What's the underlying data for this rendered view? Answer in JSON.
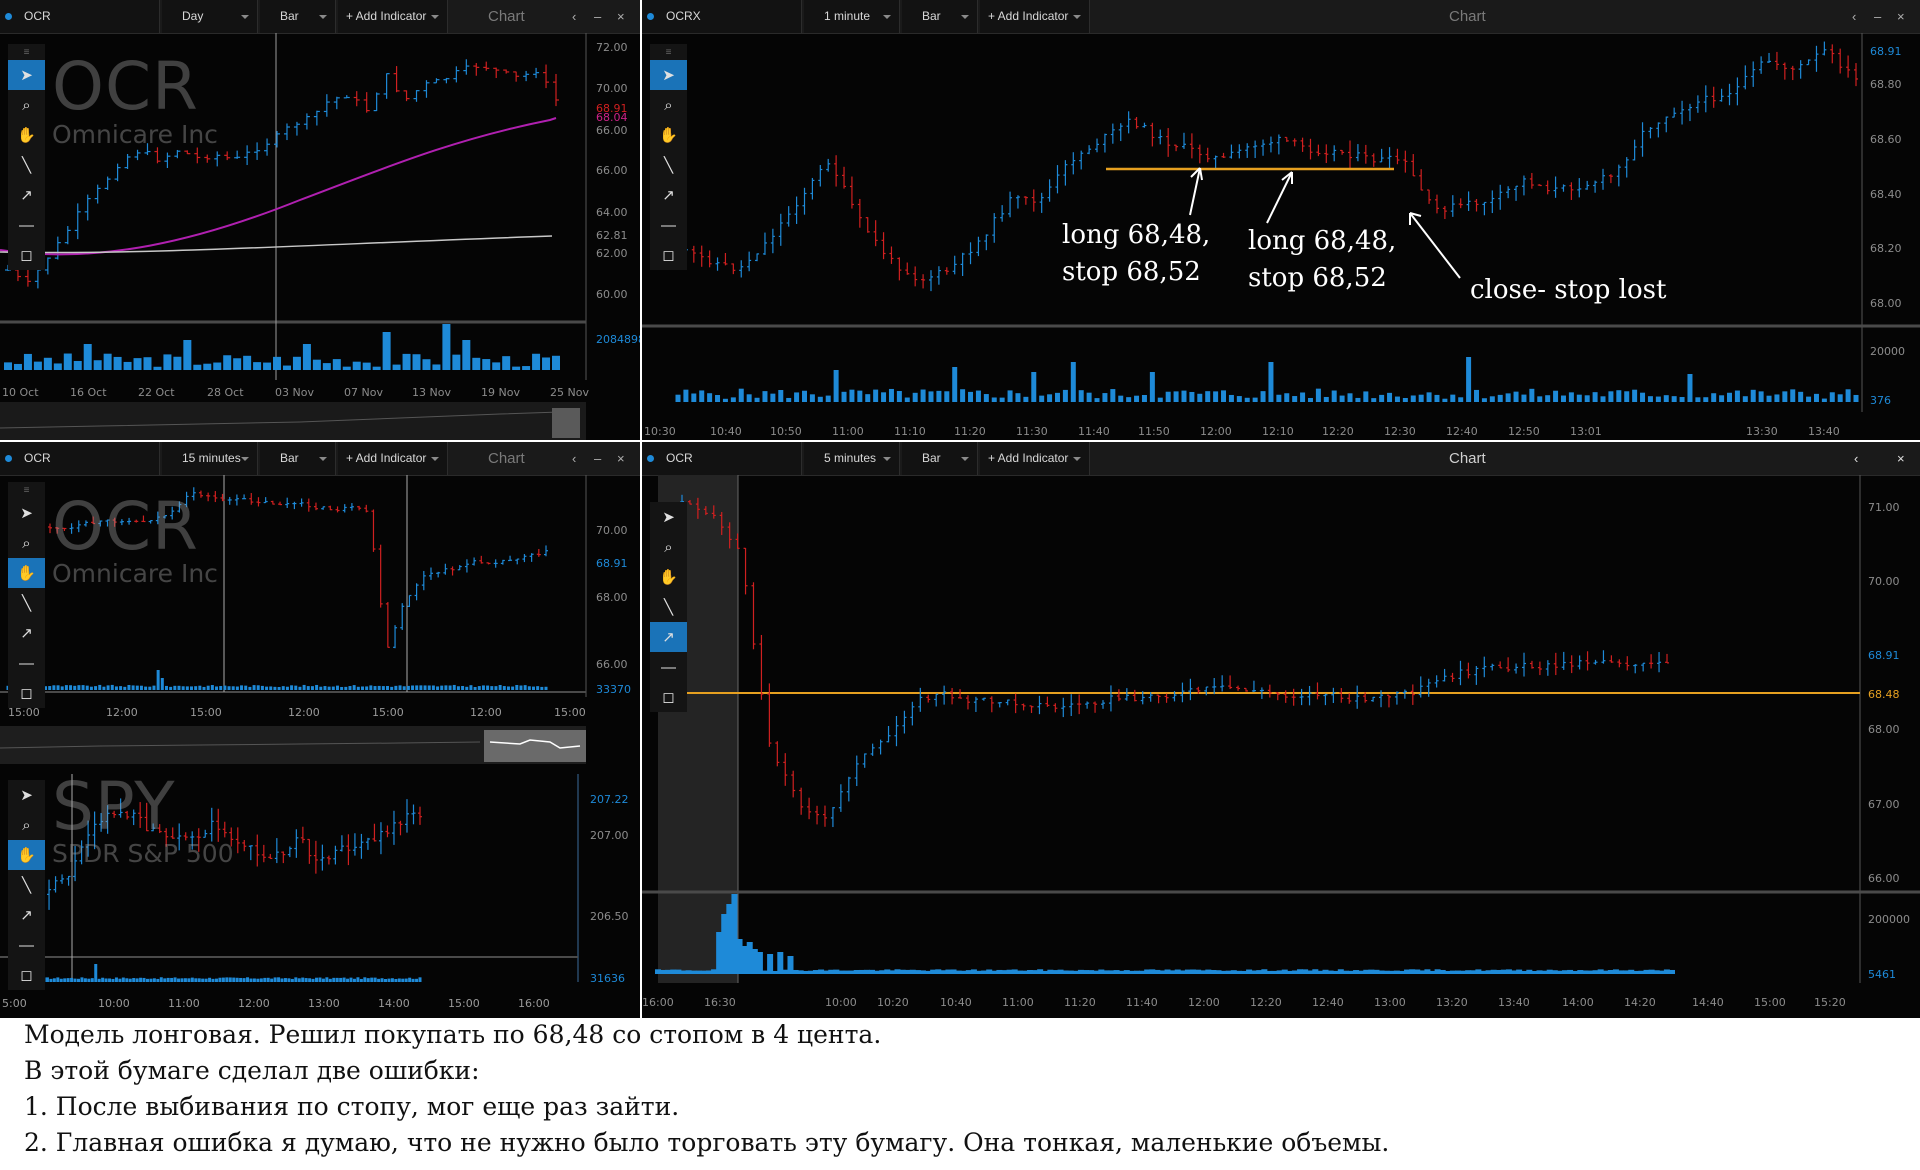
{
  "panels": {
    "daily": {
      "symbol": "OCR",
      "interval": "Day",
      "type": "Bar",
      "add": "+ Add Indicator",
      "title": "Chart",
      "wm_ticker": "OCR",
      "wm_name": "Omnicare  Inc",
      "price_labels": [
        "72.00",
        "70.00",
        "66.00",
        "64.00",
        "62.00",
        "60.00",
        "66.00"
      ],
      "price_colored": [
        "68.91",
        "68.04",
        "62.81"
      ],
      "volume_label": "2084898",
      "dates": [
        "10 Oct",
        "16 Oct",
        "22 Oct",
        "28 Oct",
        "03 Nov",
        "07 Nov",
        "13 Nov",
        "19 Nov",
        "25 Nov"
      ],
      "last_price": "68.91",
      "ma_price": "68.04",
      "ma2_price": "62.81"
    },
    "min1": {
      "symbol": "OCRX",
      "interval": "1 minute",
      "type": "Bar",
      "add": "+ Add Indicator",
      "title": "Chart",
      "price_labels": [
        "68.91",
        "68.80",
        "68.60",
        "68.40",
        "68.20",
        "68.00"
      ],
      "volume_labels": [
        "20000",
        "376"
      ],
      "times": [
        "10:30",
        "10:40",
        "10:50",
        "11:00",
        "11:10",
        "11:20",
        "11:30",
        "11:40",
        "11:50",
        "12:00",
        "12:10",
        "12:20",
        "12:30",
        "12:40",
        "12:50",
        "13:01",
        "13:30",
        "13:40"
      ]
    },
    "min15": {
      "symbol": "OCR",
      "interval": "15 minutes",
      "type": "Bar",
      "add": "+ Add Indicator",
      "title": "Chart",
      "wm_ticker": "OCR",
      "wm_name": "Omnicare  Inc",
      "price_labels": [
        "70.00",
        "68.91",
        "68.00",
        "66.00"
      ],
      "volume_label": "33370",
      "times": [
        "15:00",
        "12:00",
        "15:00",
        "12:00",
        "15:00",
        "12:00",
        "15:00"
      ]
    },
    "spy": {
      "wm_ticker": "SPY",
      "wm_name": "SPDR S&P 500",
      "price_labels": [
        "207.22",
        "207.00",
        "206.50"
      ],
      "volume_label": "31636",
      "times": [
        "5:00",
        "10:00",
        "11:00",
        "12:00",
        "13:00",
        "14:00",
        "15:00",
        "16:00"
      ]
    },
    "min5": {
      "symbol": "OCR",
      "interval": "5 minutes",
      "type": "Bar",
      "add": "+ Add Indicator",
      "title": "Chart",
      "price_labels": [
        "71.00",
        "70.00",
        "68.91",
        "68.48",
        "68.00",
        "67.00",
        "66.00"
      ],
      "volume_labels": [
        "200000",
        "5461"
      ],
      "times": [
        "16:00",
        "16:30",
        "10:00",
        "10:20",
        "10:40",
        "11:00",
        "11:20",
        "11:40",
        "12:00",
        "12:20",
        "12:40",
        "13:00",
        "13:20",
        "13:40",
        "14:00",
        "14:20",
        "14:40",
        "15:00",
        "15:20"
      ],
      "level": "68.48"
    }
  },
  "annotations": {
    "entry1_line1": "long 68,48,",
    "entry1_line2": "stop 68,52",
    "entry2_line1": "long 68,48,",
    "entry2_line2": "stop 68,52",
    "exit": "close- stop lost"
  },
  "caption": [
    "Модель лонговая. Решил покупать по 68,48 со стопом в 4 цента.",
    "В этой бумаге сделал две ошибки:",
    "1.  После выбивания по стопу, мог еще раз зайти.",
    "2.  Главная ошибка я думаю, что не нужно было торговать эту бумагу. Она тонкая, маленькие объемы."
  ],
  "colors": {
    "up": "#1e8ad8",
    "down": "#d02020",
    "ma1": "#b020b0",
    "ma2": "#c8c8c8",
    "level": "#e6a020",
    "accent": "#1a73b8"
  }
}
